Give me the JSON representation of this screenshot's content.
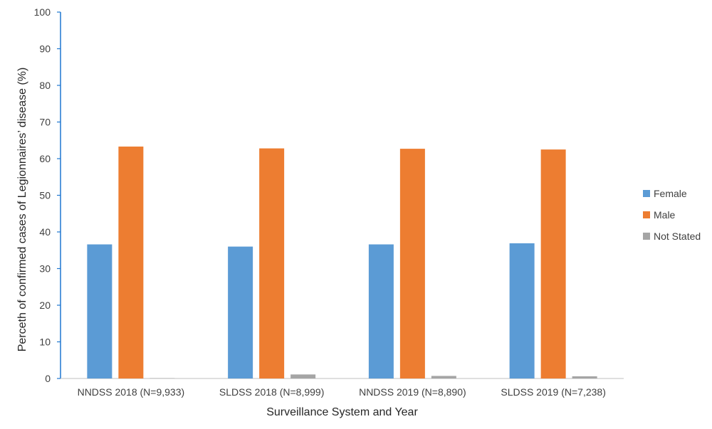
{
  "chart_data": {
    "type": "bar",
    "title": "",
    "xlabel": "Surveillance System and Year",
    "ylabel": "Perceth of confirmed cases of Legionnaires’ disease  (%)",
    "ylim": [
      0,
      100
    ],
    "yticks": [
      0,
      10,
      20,
      30,
      40,
      50,
      60,
      70,
      80,
      90,
      100
    ],
    "grid": false,
    "legend_position": "right",
    "categories": [
      "NNDSS 2018 (N=9,933)",
      "SLDSS 2018 (N=8,999)",
      "NNDSS 2019 (N=8,890)",
      "SLDSS 2019 (N=7,238)"
    ],
    "series": [
      {
        "name": "Female",
        "color": "#5B9BD5",
        "values": [
          36.6,
          36.0,
          36.6,
          36.9
        ]
      },
      {
        "name": "Male",
        "color": "#ED7D31",
        "values": [
          63.3,
          62.8,
          62.7,
          62.5
        ]
      },
      {
        "name": "Not Stated",
        "color": "#A5A5A5",
        "values": [
          0.1,
          1.1,
          0.7,
          0.6
        ]
      }
    ]
  }
}
